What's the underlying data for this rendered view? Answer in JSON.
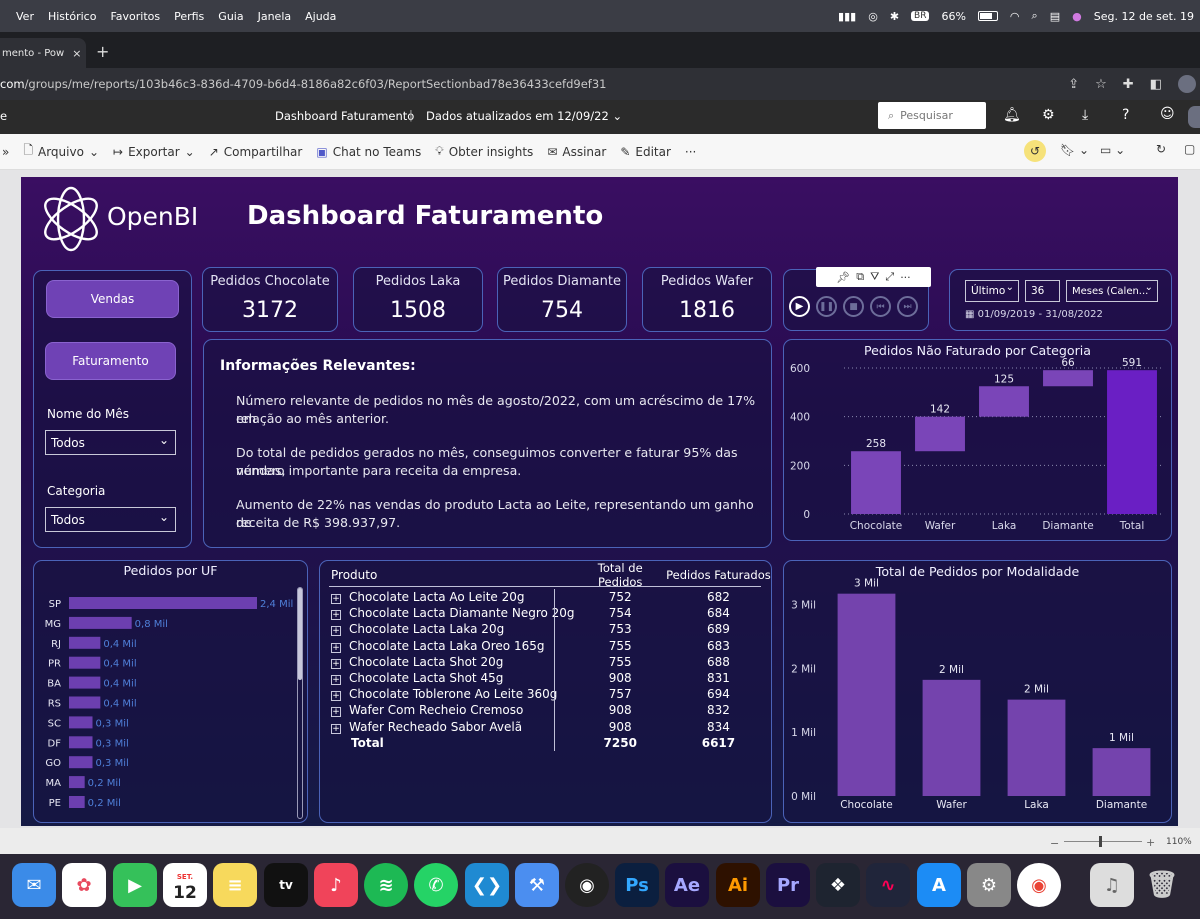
{
  "menubar": {
    "items": [
      "Ver",
      "Histórico",
      "Favoritos",
      "Perfis",
      "Guia",
      "Janela",
      "Ajuda"
    ],
    "battery": "66%",
    "date": "Seg. 12 de set. 19",
    "lang_badge": "BR"
  },
  "browser": {
    "tab_title": "mento - Pow",
    "url_domain": "com",
    "url_path": "/groups/me/reports/103b46c3-836d-4709-b6d4-8186a82c6f03/ReportSectionbad78e36433cefd9ef31"
  },
  "pbi": {
    "report_name": "Dashboard Faturamento",
    "updated": "Dados atualizados em 12/09/22",
    "search_placeholder": "Pesquisar",
    "edge_char": "e"
  },
  "toolbar": {
    "arquivo": "Arquivo",
    "exportar": "Exportar",
    "compartilhar": "Compartilhar",
    "chat_teams": "Chat no Teams",
    "insights": "Obter insights",
    "assinar": "Assinar",
    "editar": "Editar",
    "more": "···"
  },
  "report": {
    "logo": "OpenBI",
    "title": "Dashboard Faturamento",
    "nav": {
      "vendas": "Vendas",
      "faturamento": "Faturamento"
    },
    "filters": {
      "mes_label": "Nome do Mês",
      "mes_value": "Todos",
      "cat_label": "Categoria",
      "cat_value": "Todos"
    },
    "kpis": [
      {
        "title": "Pedidos Chocolate",
        "value": "3172"
      },
      {
        "title": "Pedidos Laka",
        "value": "1508"
      },
      {
        "title": "Pedidos Diamante",
        "value": "754"
      },
      {
        "title": "Pedidos Wafer",
        "value": "1816"
      }
    ],
    "date_filter": {
      "mode": "Último",
      "count": "36",
      "unit": "Meses (Calen...",
      "range": "01/09/2019 - 31/08/2022"
    },
    "info": {
      "title": "Informações Relevantes:",
      "p1a": "Número relevante de pedidos no mês de agosto/2022, com um acréscimo de 17% em",
      "p1b": "relação ao mês anterior.",
      "p2a": "Do total de pedidos gerados no mês, conseguimos converter e faturar 95% das vendas,",
      "p2b": "número importante para receita da empresa.",
      "p3a": "Aumento de 22% nas vendas do produto Lacta ao Leite, representando um ganho de",
      "p3b": "receita de R$ 398.937,97."
    },
    "table": {
      "headers": [
        "Produto",
        "Total de Pedidos",
        "Pedidos Faturados"
      ],
      "rows": [
        [
          "Chocolate Lacta Ao Leite 20g",
          "752",
          "682"
        ],
        [
          "Chocolate Lacta Diamante Negro 20g",
          "754",
          "684"
        ],
        [
          "Chocolate Lacta Laka 20g",
          "753",
          "689"
        ],
        [
          "Chocolate Lacta Laka Oreo 165g",
          "755",
          "683"
        ],
        [
          "Chocolate Lacta Shot 20g",
          "755",
          "688"
        ],
        [
          "Chocolate Lacta Shot 45g",
          "908",
          "831"
        ],
        [
          "Chocolate Toblerone Ao Leite 360g",
          "757",
          "694"
        ],
        [
          "Wafer Com Recheio Cremoso",
          "908",
          "832"
        ],
        [
          "Wafer Recheado Sabor Avelã",
          "908",
          "834"
        ]
      ],
      "total": [
        "Total",
        "7250",
        "6617"
      ]
    },
    "bottom": {
      "zoom": "110%"
    }
  },
  "chart_data": [
    {
      "type": "bar",
      "subtype": "waterfall",
      "title": "Pedidos Não Faturado por Categoria",
      "categories": [
        "Chocolate",
        "Wafer",
        "Laka",
        "Diamante",
        "Total"
      ],
      "values": [
        258,
        142,
        125,
        66,
        591
      ],
      "data_labels": [
        "258",
        "142",
        "125",
        "66",
        "591"
      ],
      "yticks": [
        "0",
        "200",
        "400",
        "600"
      ],
      "ylim": [
        0,
        600
      ],
      "colors": {
        "step": "#7a45b8",
        "total": "#6a1fc4"
      }
    },
    {
      "type": "bar",
      "orientation": "horizontal",
      "title": "Pedidos por UF",
      "categories": [
        "SP",
        "MG",
        "RJ",
        "PR",
        "BA",
        "RS",
        "SC",
        "DF",
        "GO",
        "MA",
        "PE"
      ],
      "values": [
        2.4,
        0.8,
        0.4,
        0.4,
        0.4,
        0.4,
        0.3,
        0.3,
        0.3,
        0.2,
        0.2
      ],
      "data_labels": [
        "2,4 Mil",
        "0,8 Mil",
        "0,4 Mil",
        "0,4 Mil",
        "0,4 Mil",
        "0,4 Mil",
        "0,3 Mil",
        "0,3 Mil",
        "0,3 Mil",
        "0,2 Mil",
        "0,2 Mil"
      ],
      "unit": "Mil",
      "color": "#6c3fb0"
    },
    {
      "type": "bar",
      "title": "Total de Pedidos por Modalidade",
      "categories": [
        "Chocolate",
        "Wafer",
        "Laka",
        "Diamante"
      ],
      "values": [
        3.17,
        1.82,
        1.51,
        0.75
      ],
      "data_labels": [
        "3 Mil",
        "2 Mil",
        "2 Mil",
        "1 Mil"
      ],
      "yticks": [
        "0 Mil",
        "1 Mil",
        "2 Mil",
        "3 Mil"
      ],
      "ylim": [
        0,
        3.4
      ],
      "color": "#7443ad"
    }
  ],
  "dock": {
    "calendar_month": "SET.",
    "calendar_day": "12"
  }
}
